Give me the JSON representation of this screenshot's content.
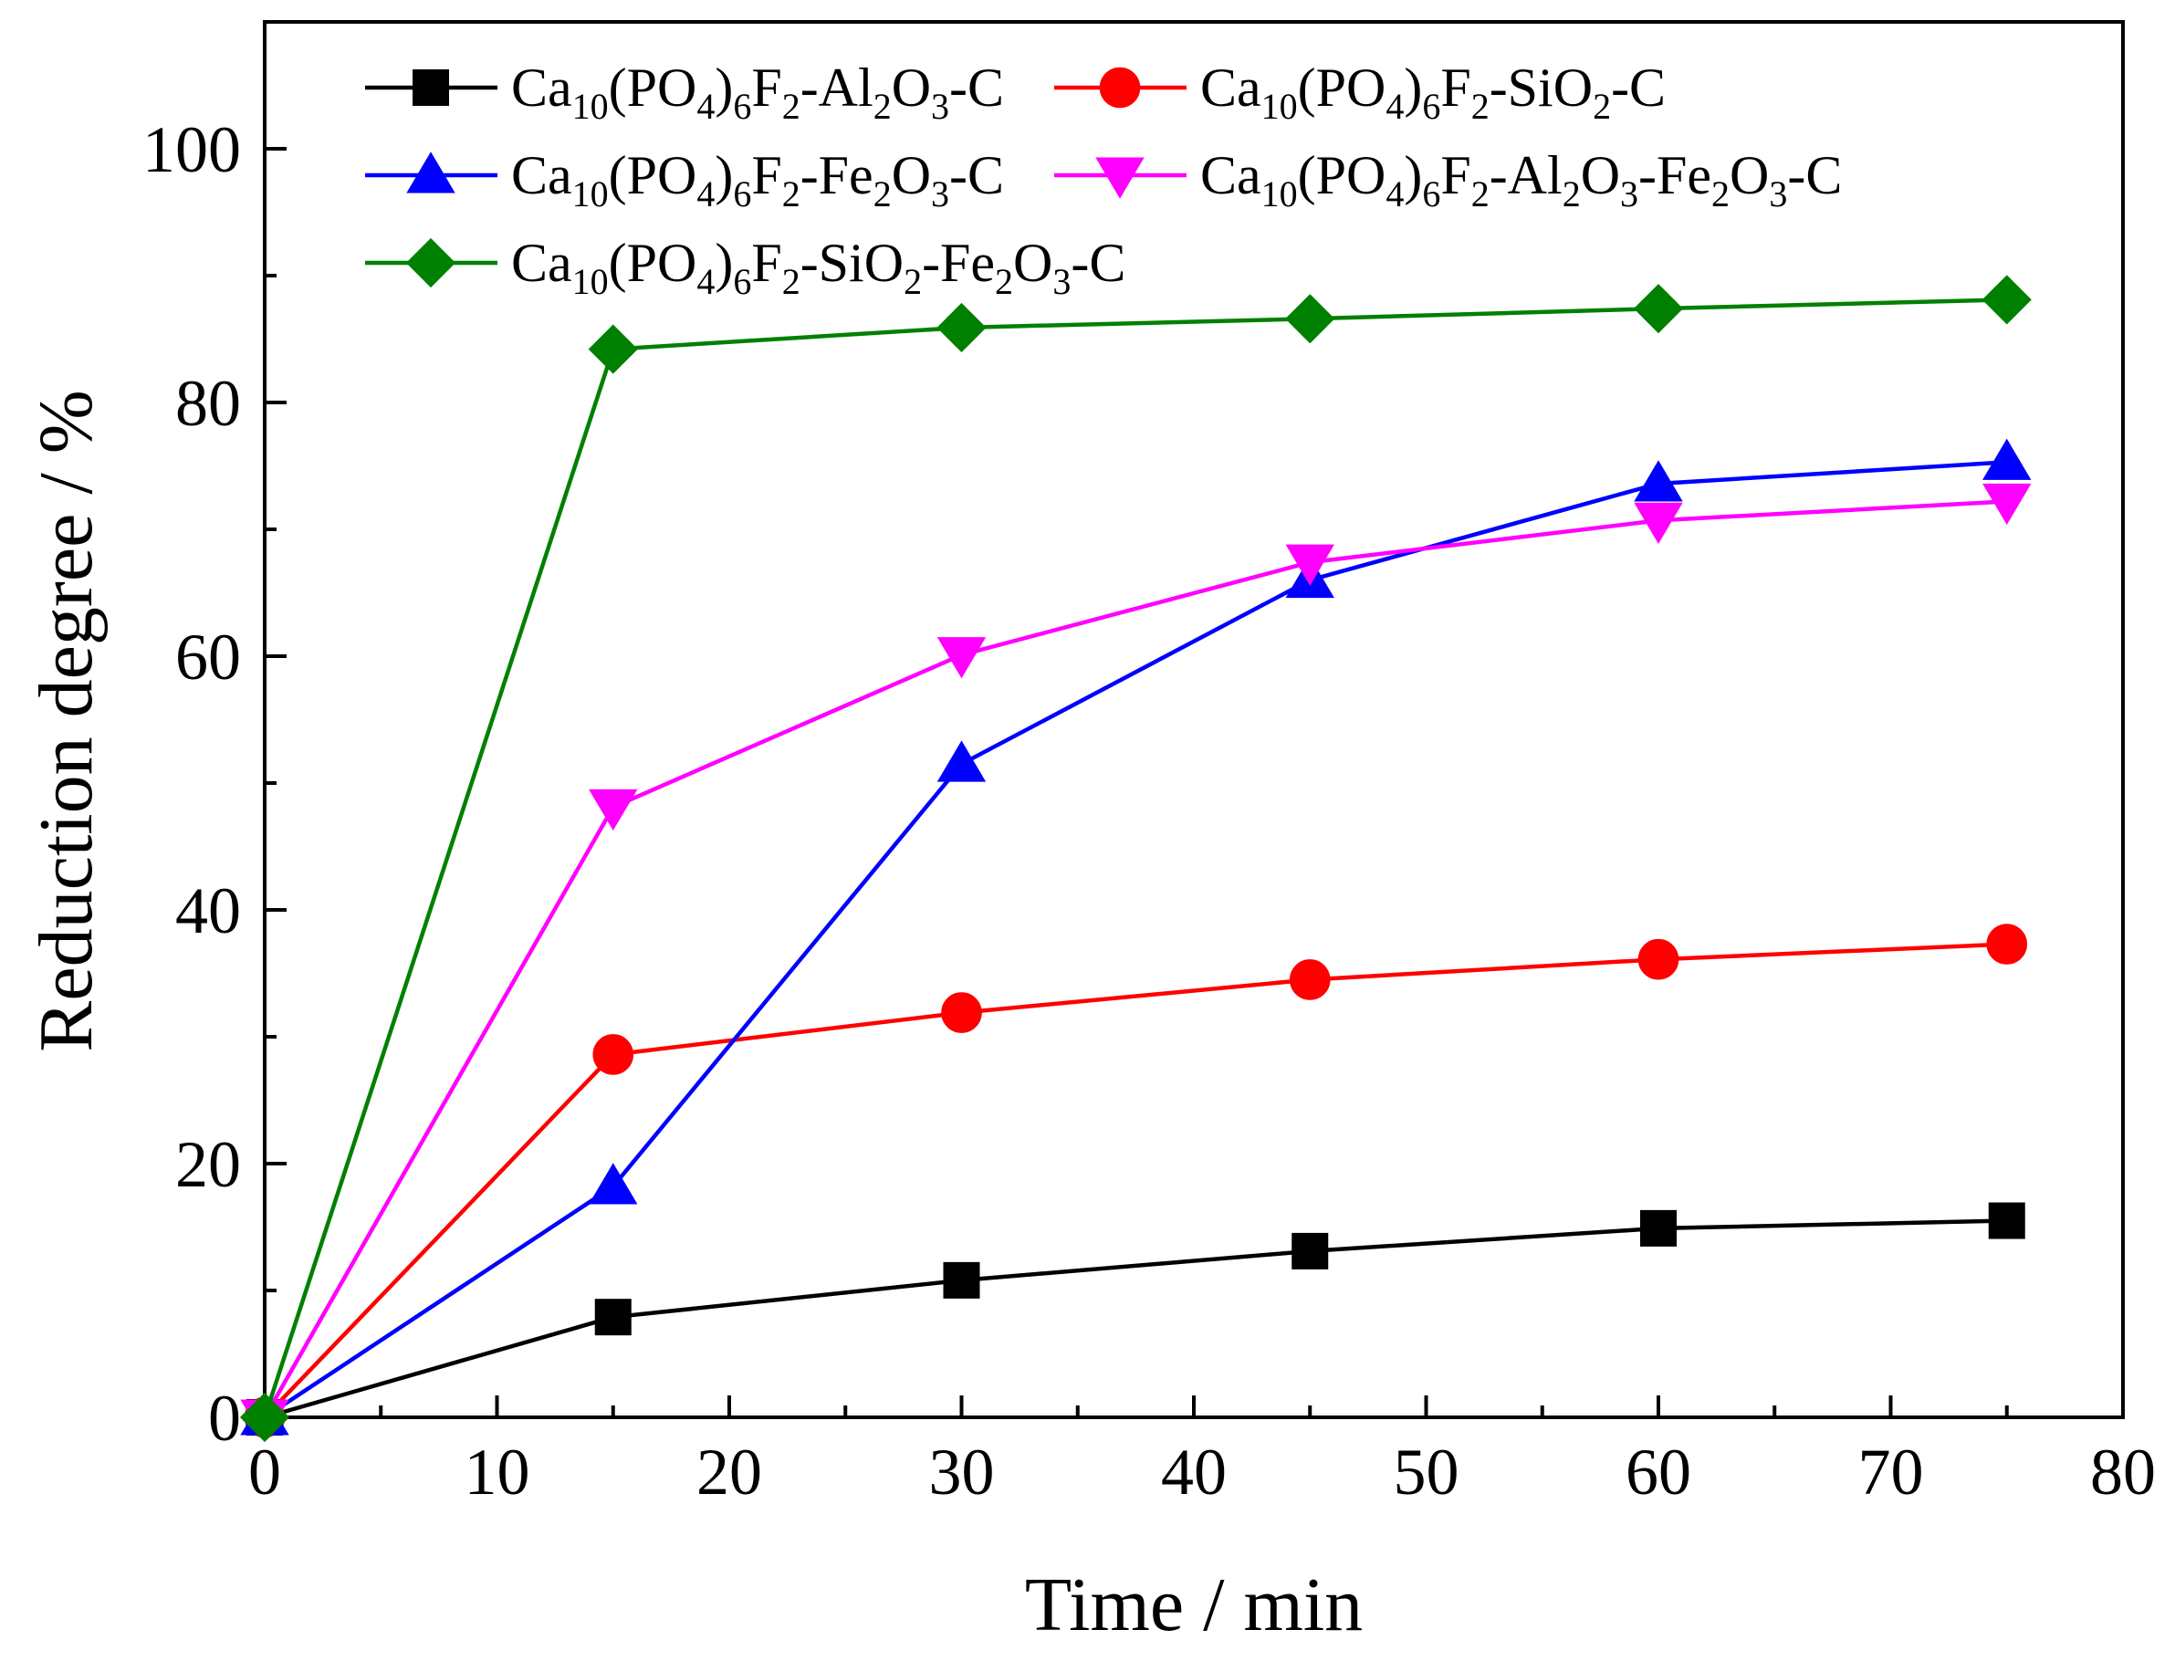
{
  "chart_data": {
    "type": "line",
    "title": "",
    "xlabel": "Time / min",
    "ylabel": "Reduction degree / %",
    "xlim": [
      0,
      80
    ],
    "ylim": [
      0,
      110
    ],
    "x_ticks": [
      0,
      10,
      20,
      30,
      40,
      50,
      60,
      70,
      80
    ],
    "y_ticks": [
      0,
      20,
      40,
      60,
      80,
      100
    ],
    "x_tick_labels": [
      "0",
      "10",
      "20",
      "30",
      "40",
      "50",
      "60",
      "70",
      "80"
    ],
    "y_tick_labels": [
      "0",
      "20",
      "40",
      "60",
      "80",
      "100"
    ],
    "grid": false,
    "legend_position": "top-left",
    "x": [
      0,
      15,
      30,
      45,
      60,
      75
    ],
    "series": [
      {
        "name": "Ca10(PO4)6F2-Al2O3-C",
        "label_parts": [
          [
            "Ca",
            ""
          ],
          [
            "10",
            "sub"
          ],
          [
            "(PO",
            ""
          ],
          [
            "4",
            "sub"
          ],
          [
            ")",
            ""
          ],
          [
            "6",
            "sub"
          ],
          [
            "F",
            ""
          ],
          [
            "2",
            "sub"
          ],
          [
            "-Al",
            ""
          ],
          [
            "2",
            "sub"
          ],
          [
            "O",
            ""
          ],
          [
            "3",
            "sub"
          ],
          [
            "-C",
            ""
          ]
        ],
        "color": "#000000",
        "marker": "square",
        "values": [
          0,
          7.9,
          10.8,
          13.1,
          14.9,
          15.5
        ]
      },
      {
        "name": "Ca10(PO4)6F2-SiO2-C",
        "label_parts": [
          [
            "Ca",
            ""
          ],
          [
            "10",
            "sub"
          ],
          [
            "(PO",
            ""
          ],
          [
            "4",
            "sub"
          ],
          [
            ")",
            ""
          ],
          [
            "6",
            "sub"
          ],
          [
            "F",
            ""
          ],
          [
            "2",
            "sub"
          ],
          [
            "-SiO",
            ""
          ],
          [
            "2",
            "sub"
          ],
          [
            "-C",
            ""
          ]
        ],
        "color": "#ff0000",
        "marker": "circle",
        "values": [
          0,
          28.6,
          31.9,
          34.5,
          36.1,
          37.3
        ]
      },
      {
        "name": "Ca10(PO4)6F2-Fe2O3-C",
        "label_parts": [
          [
            "Ca",
            ""
          ],
          [
            "10",
            "sub"
          ],
          [
            "(PO",
            ""
          ],
          [
            "4",
            "sub"
          ],
          [
            ")",
            ""
          ],
          [
            "6",
            "sub"
          ],
          [
            "F",
            ""
          ],
          [
            "2",
            "sub"
          ],
          [
            "-Fe",
            ""
          ],
          [
            "2",
            "sub"
          ],
          [
            "O",
            ""
          ],
          [
            "3",
            "sub"
          ],
          [
            "-C",
            ""
          ]
        ],
        "color": "#0000ff",
        "marker": "triangle-up",
        "values": [
          0,
          18.2,
          51.5,
          66.0,
          73.6,
          75.3
        ]
      },
      {
        "name": "Ca10(PO4)6F2-Al2O3-Fe2O3-C",
        "label_parts": [
          [
            "Ca",
            ""
          ],
          [
            "10",
            "sub"
          ],
          [
            "(PO",
            ""
          ],
          [
            "4",
            "sub"
          ],
          [
            ")",
            ""
          ],
          [
            "6",
            "sub"
          ],
          [
            "F",
            ""
          ],
          [
            "2",
            "sub"
          ],
          [
            "-Al",
            ""
          ],
          [
            "2",
            "sub"
          ],
          [
            "O",
            ""
          ],
          [
            "3",
            "sub"
          ],
          [
            "-Fe",
            ""
          ],
          [
            "2",
            "sub"
          ],
          [
            "O",
            ""
          ],
          [
            "3",
            "sub"
          ],
          [
            "-C",
            ""
          ]
        ],
        "color": "#ff00ff",
        "marker": "triangle-down",
        "values": [
          0,
          48.1,
          60.1,
          67.4,
          70.7,
          72.2
        ]
      },
      {
        "name": "Ca10(PO4)6F2-SiO2-Fe2O3-C",
        "label_parts": [
          [
            "Ca",
            ""
          ],
          [
            "10",
            "sub"
          ],
          [
            "(PO",
            ""
          ],
          [
            "4",
            "sub"
          ],
          [
            ")",
            ""
          ],
          [
            "6",
            "sub"
          ],
          [
            "F",
            ""
          ],
          [
            "2",
            "sub"
          ],
          [
            "-SiO",
            ""
          ],
          [
            "2",
            "sub"
          ],
          [
            "-Fe",
            ""
          ],
          [
            "2",
            "sub"
          ],
          [
            "O",
            ""
          ],
          [
            "3",
            "sub"
          ],
          [
            "-C",
            ""
          ]
        ],
        "color": "#008000",
        "marker": "diamond",
        "values": [
          0,
          84.2,
          85.9,
          86.6,
          87.4,
          88.1
        ]
      }
    ]
  }
}
